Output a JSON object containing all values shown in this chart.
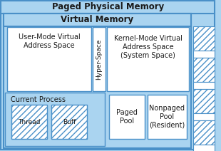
{
  "title_paged": "Paged Physical Memory",
  "title_vm": "Virtual Memory",
  "label_user": "User-Mode Virtual\nAddress Space",
  "label_hyper": "Hyper-Space",
  "label_kernel": "Kernel-Mode Virtual\nAddress Space\n(System Space)",
  "label_current": "Current Process",
  "label_thread": "Thread",
  "label_buff": "Buff",
  "label_paged_pool": "Paged\nPool",
  "label_nonpaged": "Nonpaged\nPool\n(Resident)",
  "bg_blue": "#aad4f0",
  "bg_white": "#ffffff",
  "box_edge": "#4a90c8",
  "text_color": "#1a1a1a",
  "title_fontsize": 8.5,
  "label_fontsize": 7.0,
  "small_fontsize": 6.5
}
